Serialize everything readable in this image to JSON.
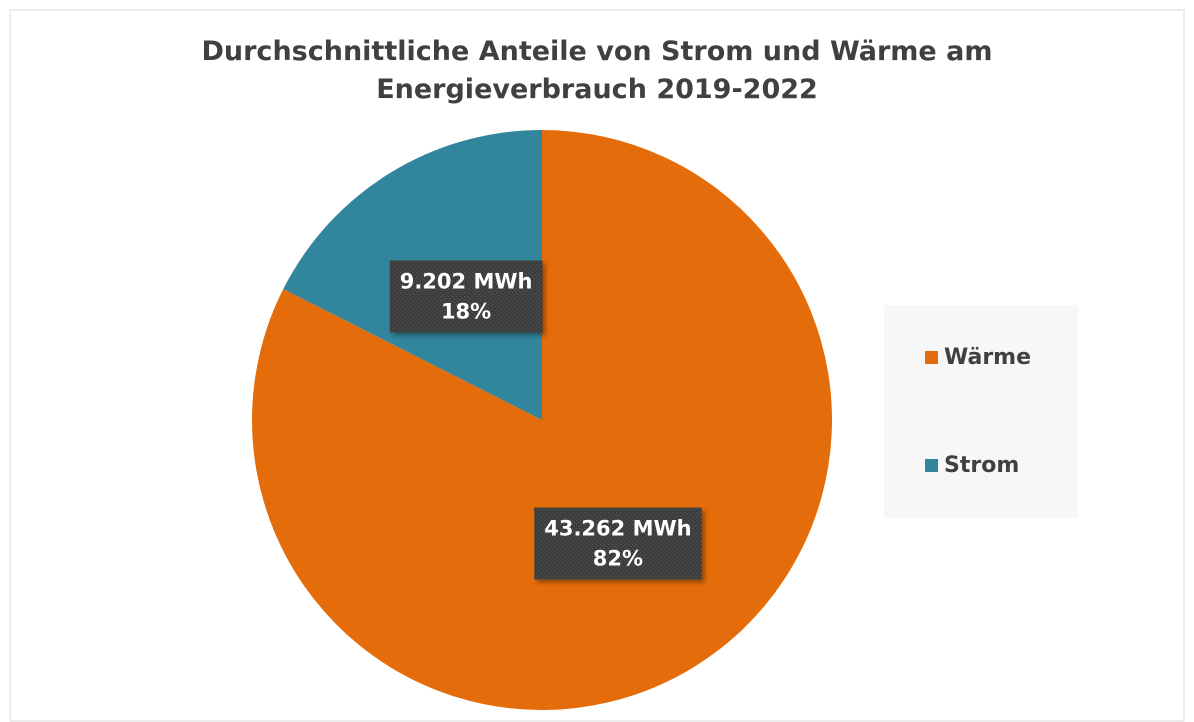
{
  "chart_data": {
    "type": "pie",
    "title": "Durchschnittliche Anteile von Strom und Wärme am Energieverbrauch 2019-2022",
    "categories": [
      "Wärme",
      "Strom"
    ],
    "values": [
      43262,
      9202
    ],
    "value_labels": [
      "43.262 MWh",
      "9.202 MWh"
    ],
    "shares": [
      82,
      18
    ],
    "share_labels": [
      "82%",
      "18%"
    ],
    "colors": [
      "#e46c0a",
      "#31859c"
    ],
    "legend": "right"
  }
}
